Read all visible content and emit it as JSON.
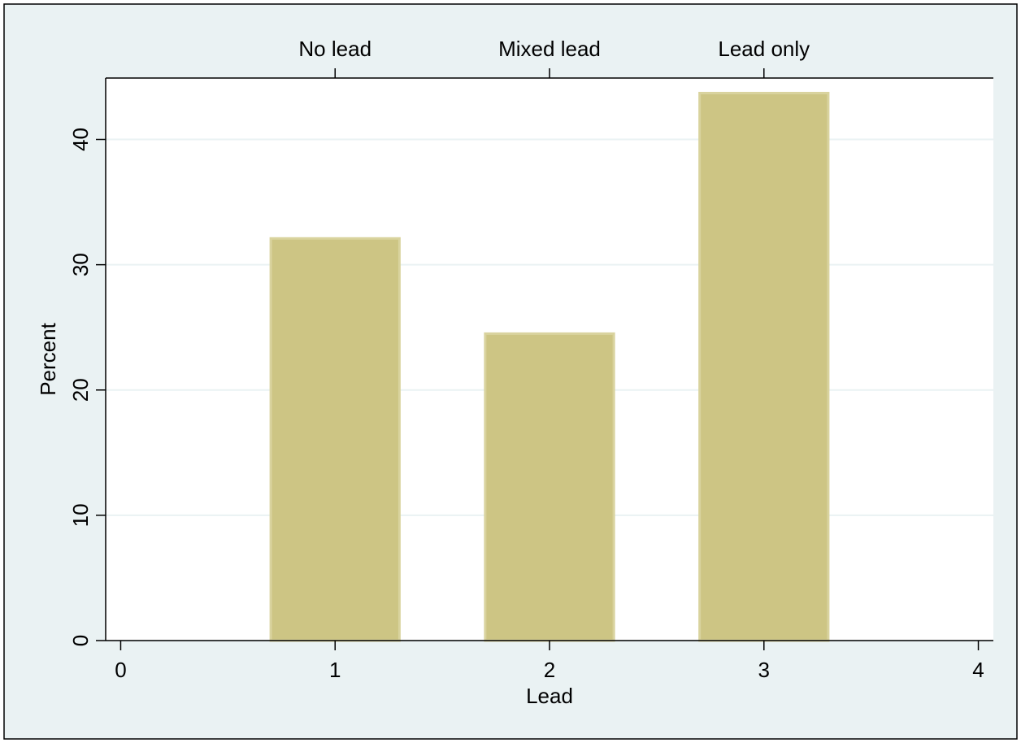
{
  "chart_data": {
    "type": "bar",
    "x_label": "Lead",
    "y_label": "Percent",
    "x": [
      1,
      2,
      3
    ],
    "values": [
      32.1,
      24.5,
      43.7
    ],
    "bar_width": 0.6,
    "color": "#cdc584",
    "xlim": [
      -0.07,
      4.07
    ],
    "xticks": [
      0,
      1,
      2,
      3,
      4
    ],
    "top_ticks": [
      {
        "value": 1,
        "label": "No lead"
      },
      {
        "value": 2,
        "label": "Mixed lead"
      },
      {
        "value": 3,
        "label": "Lead only"
      }
    ],
    "ylim": [
      0,
      44.9
    ],
    "yticks": [
      0,
      10,
      20,
      30,
      40
    ],
    "grid": true
  }
}
